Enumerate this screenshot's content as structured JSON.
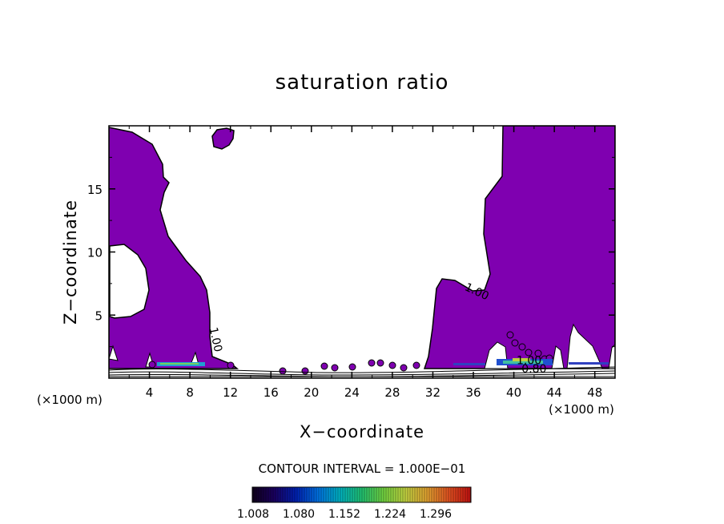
{
  "chart_data": {
    "type": "contour",
    "title": "saturation ratio",
    "xlabel": "X−coordinate",
    "ylabel": "Z−coordinate",
    "x_unit_left": "(×1000 m)",
    "x_unit_right": "(×1000 m)",
    "xlim": [
      0,
      50
    ],
    "ylim": [
      0,
      20
    ],
    "x_ticks": [
      4,
      8,
      12,
      16,
      20,
      24,
      28,
      32,
      36,
      40,
      44,
      48
    ],
    "y_ticks": [
      5,
      10,
      15
    ],
    "contour_labels": [
      {
        "text": "1.00",
        "x": 36.2,
        "z": 6.6,
        "rotate": 25
      },
      {
        "text": "1.00",
        "x": 10.2,
        "z": 3.0,
        "rotate": 78
      },
      {
        "text": "1.00",
        "x": 41.5,
        "z": 1.1,
        "rotate": 0
      },
      {
        "text": "0.80",
        "x": 42.0,
        "z": 0.45,
        "rotate": 0
      }
    ],
    "fill_color": "#7f00b0",
    "contour_interval_text": "CONTOUR INTERVAL = 1.000E−01",
    "colorbar": {
      "ticks": [
        "1.008",
        "1.080",
        "1.152",
        "1.224",
        "1.296"
      ],
      "colors": [
        "#10001a",
        "#1a0060",
        "#0020b0",
        "#0070e0",
        "#00b0c0",
        "#20c070",
        "#70d040",
        "#c0d040",
        "#e0a030",
        "#e05020",
        "#c01010"
      ]
    }
  }
}
